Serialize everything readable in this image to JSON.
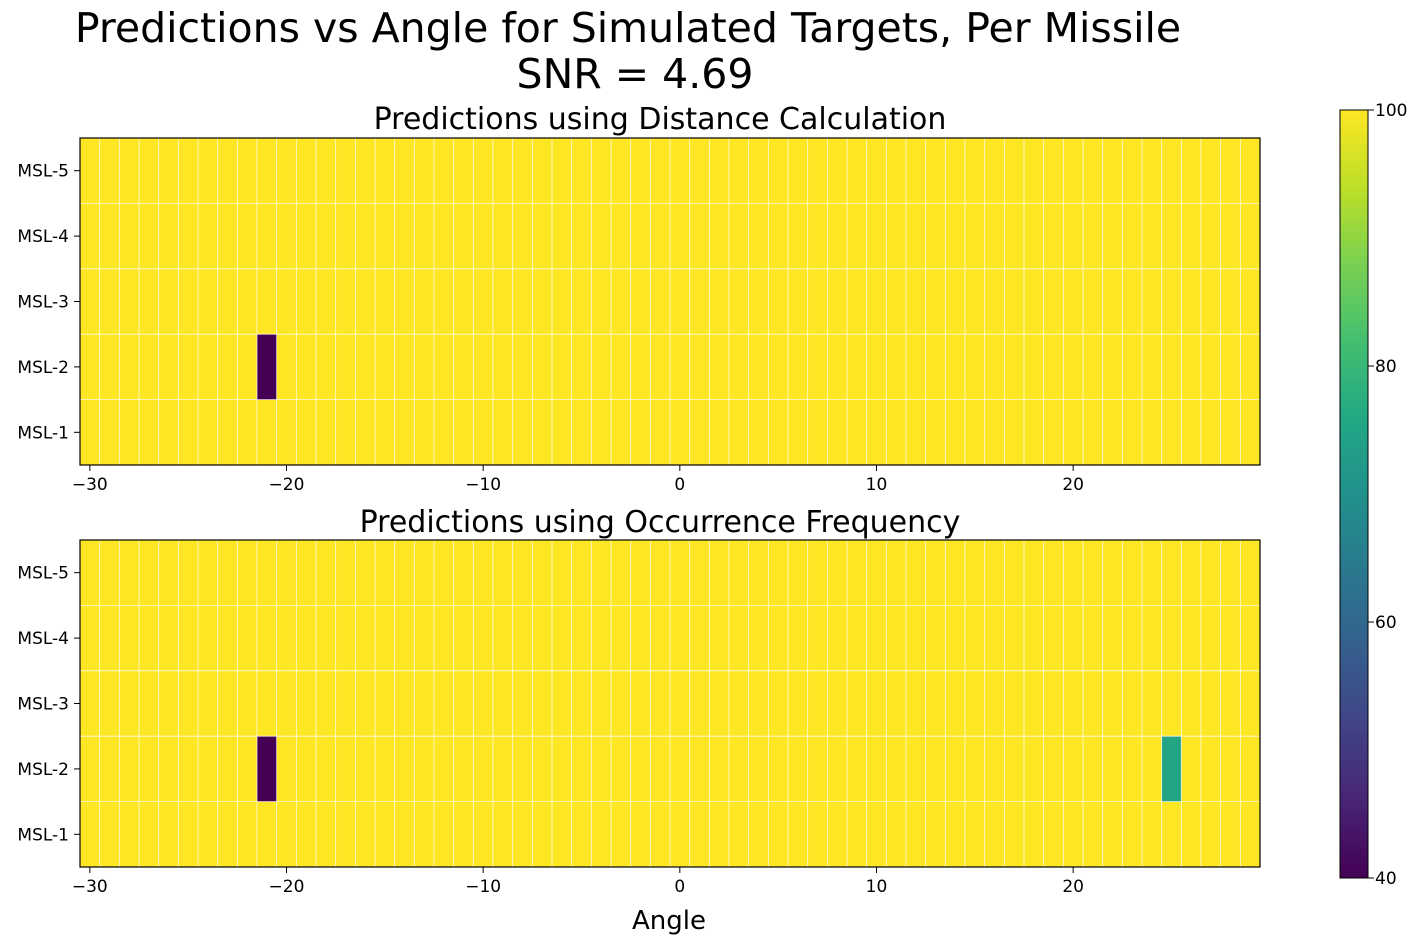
{
  "title_line1": "Predictions vs Angle for Simulated Targets, Per Missile",
  "title_line2": "SNR = 4.69",
  "xlabel": "Angle",
  "colorbar": {
    "colormap": "viridis",
    "range": [
      40,
      100
    ],
    "ticks": [
      40,
      60,
      80,
      100
    ]
  },
  "chart_data": [
    {
      "type": "heatmap",
      "title": "Predictions using Distance Calculation",
      "x_start": -30.5,
      "x_step": 1,
      "x_count": 60,
      "x_ticks": [
        -30,
        -20,
        -10,
        0,
        10,
        20
      ],
      "rows": [
        "MSL-1",
        "MSL-2",
        "MSL-3",
        "MSL-4",
        "MSL-5"
      ],
      "default_value": 100,
      "cells": [
        {
          "row": "MSL-2",
          "x": -21,
          "value": 40
        }
      ],
      "grid": true
    },
    {
      "type": "heatmap",
      "title": "Predictions using Occurrence Frequency",
      "x_start": -30.5,
      "x_step": 1,
      "x_count": 60,
      "x_ticks": [
        -30,
        -20,
        -10,
        0,
        10,
        20
      ],
      "rows": [
        "MSL-1",
        "MSL-2",
        "MSL-3",
        "MSL-4",
        "MSL-5"
      ],
      "default_value": 100,
      "cells": [
        {
          "row": "MSL-2",
          "x": -21,
          "value": 40
        },
        {
          "row": "MSL-2",
          "x": 25,
          "value": 75
        }
      ],
      "grid": true
    }
  ]
}
